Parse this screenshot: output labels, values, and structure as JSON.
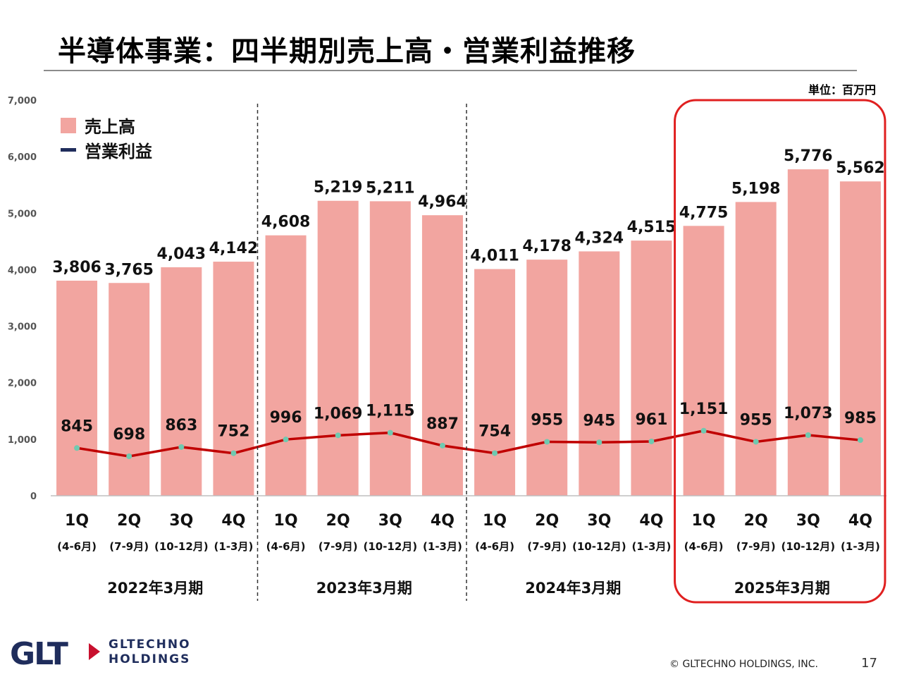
{
  "slide": {
    "title": "半導体事業：四半期別売上高・営業利益推移",
    "unit_label": "単位：百万円",
    "copyright": "© GLTECHNO HOLDINGS, INC.",
    "page_number": "17",
    "logo": {
      "mark": "GLT",
      "line1": "GLTECHNO",
      "line2": "HOLDINGS"
    }
  },
  "chart_data": {
    "type": "bar",
    "ylim": [
      0,
      7000
    ],
    "yticks": [
      "0",
      "1,000",
      "2,000",
      "3,000",
      "4,000",
      "5,000",
      "6,000",
      "7,000"
    ],
    "legend": [
      "売上高",
      "営業利益"
    ],
    "legend_position": "top-left",
    "categories": [
      "1Q",
      "2Q",
      "3Q",
      "4Q",
      "1Q",
      "2Q",
      "3Q",
      "4Q",
      "1Q",
      "2Q",
      "3Q",
      "4Q",
      "1Q",
      "2Q",
      "3Q",
      "4Q"
    ],
    "sub_labels": [
      "(4-6月)",
      "(7-9月)",
      "(10-12月)",
      "(1-3月)",
      "(4-6月)",
      "(7-9月)",
      "(10-12月)",
      "(1-3月)",
      "(4-6月)",
      "(7-9月)",
      "(10-12月)",
      "(1-3月)",
      "(4-6月)",
      "(7-9月)",
      "(10-12月)",
      "(1-3月)"
    ],
    "groups": [
      "2022年3月期",
      "2023年3月期",
      "2024年3月期",
      "2025年3月期"
    ],
    "highlight_group": "2025年3月期",
    "series": [
      {
        "name": "売上高",
        "type": "bar",
        "color": "#f2a5a0",
        "values": [
          3806,
          3765,
          4043,
          4142,
          4608,
          5219,
          5211,
          4964,
          4011,
          4178,
          4324,
          4515,
          4775,
          5198,
          5776,
          5562
        ],
        "labels": [
          "3,806",
          "3,765",
          "4,043",
          "4,142",
          "4,608",
          "5,219",
          "5,211",
          "4,964",
          "4,011",
          "4,178",
          "4,324",
          "4,515",
          "4,775",
          "5,198",
          "5,776",
          "5,562"
        ]
      },
      {
        "name": "営業利益",
        "type": "line",
        "color": "#c00000",
        "marker_color": "#6fc9b0",
        "values": [
          845,
          698,
          863,
          752,
          996,
          1069,
          1115,
          887,
          754,
          955,
          945,
          961,
          1151,
          955,
          1073,
          985
        ],
        "labels": [
          "845",
          "698",
          "863",
          "752",
          "996",
          "1,069",
          "1,115",
          "887",
          "754",
          "955",
          "945",
          "961",
          "1,151",
          "955",
          "1,073",
          "985"
        ]
      }
    ],
    "colors": {
      "highlight_box": "#e02020",
      "legend_line": "#1f2d5c"
    }
  }
}
